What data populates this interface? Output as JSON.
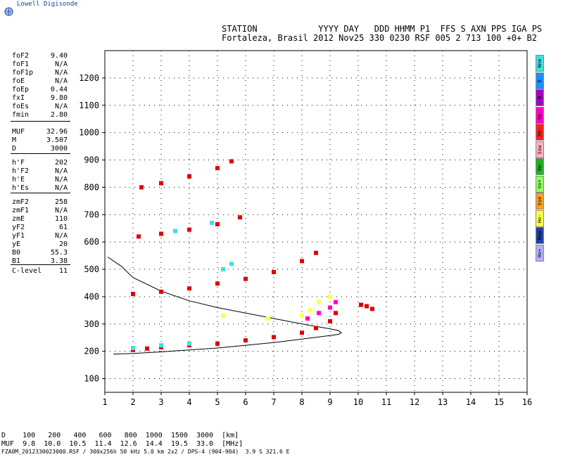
{
  "brand": "Lowell Digisonde",
  "header": {
    "line1": "STATION            YYYY DAY   DDD HHMM P1  FFS S AXN PPS IGA PS",
    "line2": "Fortaleza, Brasil 2012 Nov25 330 0230 RSF 005 2 713 100 +0+ B2"
  },
  "params": [
    {
      "name": "foF2",
      "value": "9.40"
    },
    {
      "name": "foF1",
      "value": "N/A"
    },
    {
      "name": "foF1p",
      "value": "N/A"
    },
    {
      "name": "foE",
      "value": "N/A"
    },
    {
      "name": "foEp",
      "value": "0.44"
    },
    {
      "name": "fxI",
      "value": "9.80"
    },
    {
      "name": "foEs",
      "value": "N/A"
    },
    {
      "name": "fmin",
      "value": "2.80"
    },
    {
      "name": "MUF",
      "value": "32.96"
    },
    {
      "name": "M",
      "value": "3.507"
    },
    {
      "name": "D",
      "value": "3000"
    },
    {
      "name": "h'F",
      "value": "202"
    },
    {
      "name": "h'F2",
      "value": "N/A"
    },
    {
      "name": "h'E",
      "value": "N/A"
    },
    {
      "name": "h'Es",
      "value": "N/A"
    },
    {
      "name": "zmF2",
      "value": "258"
    },
    {
      "name": "zmF1",
      "value": "N/A"
    },
    {
      "name": "zmE",
      "value": "110"
    },
    {
      "name": "yF2",
      "value": "61"
    },
    {
      "name": "yF1",
      "value": "N/A"
    },
    {
      "name": "yE",
      "value": "20"
    },
    {
      "name": "B0",
      "value": "55.3"
    },
    {
      "name": "B1",
      "value": "3.38"
    },
    {
      "name": "C-level",
      "value": "11"
    }
  ],
  "legend": [
    {
      "label": "Nne",
      "color": "#40e0e0"
    },
    {
      "label": "E",
      "color": "#1e90ff"
    },
    {
      "label": "W",
      "color": "#a000c0"
    },
    {
      "label": "Vo-",
      "color": "#ff00c0"
    },
    {
      "label": "Xo-",
      "color": "#ff2020"
    },
    {
      "label": "Ssw",
      "color": "#ffb0c0"
    },
    {
      "label": "Vo-",
      "color": "#20b020"
    },
    {
      "label": "Vo+",
      "color": "#90ff60"
    },
    {
      "label": "Sse",
      "color": "#ffa020"
    },
    {
      "label": "Ho-",
      "color": "#ffff40"
    },
    {
      "label": "Nnw",
      "color": "#2040a0"
    },
    {
      "label": "Ho+",
      "color": "#b0b0ff"
    }
  ],
  "footer": {
    "d_row": "D    100   200   400   600   800  1000  1500  3000  [km]",
    "muf_row": "MUF  9.8  10.0  10.5  11.4  12.6  14.4  19.5  33.0  [MHz]",
    "note": "FZA0M_2012330023000.RSF / 300x256h 50 kHz 5.0 km 2x2 / DPS-4 (904-904)  3.9 S 321.6 E"
  },
  "chart_data": {
    "type": "scatter",
    "xlim": [
      1,
      16
    ],
    "ylim": [
      50,
      1300
    ],
    "x_ticks": [
      1,
      2,
      3,
      4,
      5,
      6,
      7,
      8,
      9,
      10,
      11,
      12,
      13,
      14,
      15,
      16
    ],
    "y_ticks": [
      100,
      200,
      300,
      400,
      500,
      600,
      700,
      800,
      900,
      1000,
      1100,
      1200
    ],
    "grid": true,
    "series": [
      {
        "color": "#e00000",
        "points": [
          [
            2.0,
            205
          ],
          [
            2.5,
            210
          ],
          [
            3.0,
            215
          ],
          [
            4.0,
            222
          ],
          [
            5.0,
            228
          ],
          [
            6.0,
            240
          ],
          [
            7.0,
            252
          ],
          [
            8.0,
            268
          ],
          [
            8.5,
            285
          ],
          [
            9.0,
            310
          ],
          [
            9.2,
            340
          ]
        ]
      },
      {
        "color": "#e00000",
        "points": [
          [
            2.0,
            410
          ],
          [
            3.0,
            418
          ],
          [
            4.0,
            430
          ],
          [
            5.0,
            448
          ],
          [
            6.0,
            465
          ],
          [
            7.0,
            490
          ],
          [
            8.0,
            530
          ],
          [
            8.5,
            560
          ]
        ]
      },
      {
        "color": "#e00000",
        "points": [
          [
            2.2,
            620
          ],
          [
            3.0,
            630
          ],
          [
            4.0,
            645
          ],
          [
            5.0,
            665
          ],
          [
            5.8,
            690
          ]
        ]
      },
      {
        "color": "#e00000",
        "points": [
          [
            2.3,
            800
          ],
          [
            3.0,
            815
          ],
          [
            4.0,
            840
          ],
          [
            5.0,
            870
          ],
          [
            5.5,
            895
          ]
        ]
      },
      {
        "color": "#e00000",
        "points": [
          [
            10.1,
            370
          ],
          [
            10.3,
            365
          ],
          [
            10.5,
            355
          ]
        ]
      },
      {
        "color": "#ffff40",
        "points": [
          [
            8.0,
            330
          ],
          [
            8.3,
            350
          ],
          [
            8.6,
            380
          ],
          [
            9.0,
            400
          ],
          [
            5.2,
            330
          ],
          [
            6.8,
            320
          ]
        ]
      },
      {
        "color": "#ff00c0",
        "points": [
          [
            8.2,
            320
          ],
          [
            8.6,
            340
          ],
          [
            9.0,
            360
          ],
          [
            9.2,
            380
          ]
        ]
      },
      {
        "color": "#40e0e0",
        "points": [
          [
            2.0,
            212
          ],
          [
            3.0,
            222
          ],
          [
            4.0,
            228
          ],
          [
            5.2,
            500
          ],
          [
            5.5,
            520
          ],
          [
            3.5,
            640
          ],
          [
            4.8,
            670
          ]
        ]
      }
    ],
    "model_curves": [
      {
        "points": [
          [
            1.3,
            190
          ],
          [
            2.0,
            192
          ],
          [
            3.0,
            198
          ],
          [
            4.0,
            205
          ],
          [
            5.0,
            212
          ],
          [
            6.0,
            222
          ],
          [
            7.0,
            232
          ],
          [
            8.0,
            245
          ],
          [
            8.8,
            255
          ],
          [
            9.3,
            262
          ],
          [
            9.4,
            268
          ],
          [
            9.3,
            276
          ],
          [
            9.0,
            282
          ],
          [
            8.0,
            300
          ],
          [
            7.0,
            320
          ],
          [
            6.0,
            340
          ],
          [
            5.0,
            360
          ],
          [
            4.0,
            385
          ],
          [
            3.0,
            420
          ],
          [
            2.0,
            470
          ],
          [
            1.6,
            510
          ],
          [
            1.1,
            545
          ]
        ]
      }
    ]
  }
}
